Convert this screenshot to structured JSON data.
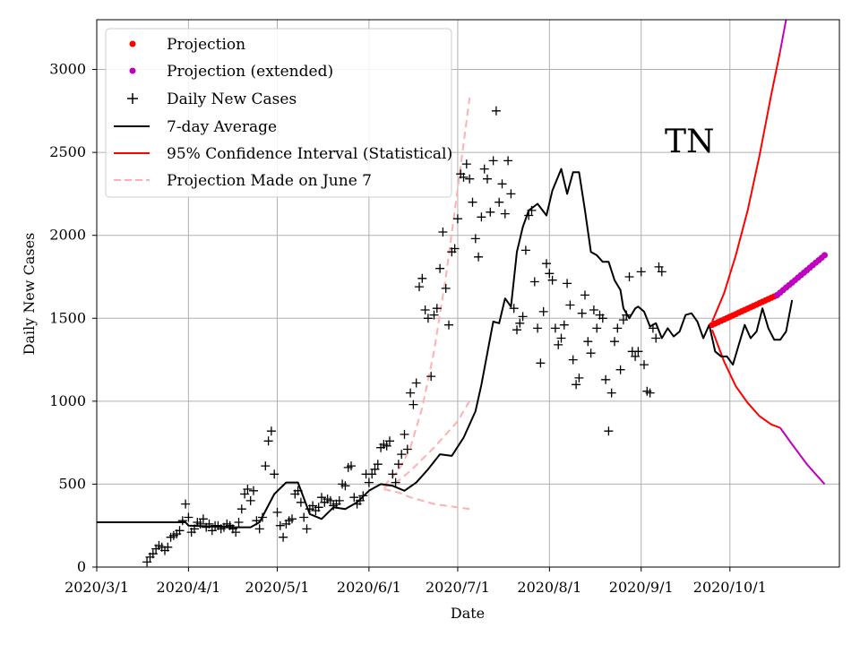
{
  "chart_data": {
    "type": "line",
    "title": "",
    "xlabel": "Date",
    "ylabel": "Daily New Cases",
    "annotation": "TN",
    "x_ticks": [
      "2020/3/1",
      "2020/4/1",
      "2020/5/1",
      "2020/6/1",
      "2020/7/1",
      "2020/8/1",
      "2020/9/1",
      "2020/10/1"
    ],
    "y_ticks": [
      "0",
      "500",
      "1000",
      "1500",
      "2000",
      "2500",
      "3000"
    ],
    "xlim_days": [
      0,
      251
    ],
    "ylim": [
      0,
      3300
    ],
    "grid": true,
    "legend_position": "top-left",
    "legend": [
      {
        "label": "Projection",
        "style": "red-dot"
      },
      {
        "label": "Projection (extended)",
        "style": "magenta-dot"
      },
      {
        "label": "Daily New Cases",
        "style": "black-plus"
      },
      {
        "label": "7-day Average",
        "style": "black-line"
      },
      {
        "label": "95% Confidence Interval (Statistical)",
        "style": "red-line"
      },
      {
        "label": "Projection Made on June 7",
        "style": "pink-dashed"
      }
    ],
    "colors": {
      "projection": "#ff0000",
      "projection_extended": "#bf00bf",
      "daily": "#000000",
      "average": "#000000",
      "ci": "#ff0000",
      "ci_extended": "#bf00bf",
      "june7": "#ffb0b0"
    },
    "series": {
      "daily_new_cases": {
        "day_offset_from_march1": 17,
        "values": [
          30,
          60,
          80,
          110,
          130,
          120,
          100,
          120,
          180,
          190,
          200,
          220,
          280,
          380,
          300,
          210,
          230,
          270,
          260,
          290,
          240,
          260,
          220,
          250,
          250,
          230,
          240,
          260,
          250,
          230,
          210,
          270,
          350,
          440,
          470,
          400,
          460,
          280,
          230,
          300,
          610,
          760,
          820,
          560,
          330,
          250,
          180,
          260,
          280,
          290,
          440,
          460,
          390,
          300,
          230,
          350,
          370,
          340,
          360,
          420,
          390,
          410,
          400,
          370,
          380,
          400,
          500,
          490,
          600,
          610,
          420,
          380,
          400,
          430,
          560,
          510,
          560,
          590,
          620,
          720,
          740,
          730,
          760,
          560,
          510,
          620,
          680,
          800,
          710,
          1050,
          980,
          1110,
          1690,
          1740,
          1550,
          1500,
          1150,
          1520,
          1560,
          1800,
          2020,
          1680,
          1460,
          1900,
          1920,
          2100,
          2370,
          2350,
          2430,
          2340,
          2200,
          1980,
          1870,
          2110,
          2400,
          2340,
          2140,
          2450,
          2750,
          2200,
          2310,
          2130,
          2450,
          2250,
          1560,
          1430,
          1470,
          1510,
          1910,
          2120,
          2150,
          1720,
          1440,
          1230,
          1540,
          1830,
          1770,
          1730,
          1440,
          1340,
          1380,
          1460,
          1710,
          1580,
          1250,
          1100,
          1140,
          1530,
          1640,
          1360,
          1290,
          1550,
          1440,
          1520,
          1500,
          1130,
          820,
          1050,
          1360,
          1440,
          1190,
          1490,
          1520,
          1750,
          1300,
          1270,
          1300,
          1780,
          1220,
          1060,
          1050,
          1440,
          1380,
          1810,
          1780
        ]
      },
      "seven_day_average": {
        "points": [
          [
            0,
            270
          ],
          [
            30,
            270
          ],
          [
            31,
            250
          ],
          [
            46,
            240
          ],
          [
            52,
            240
          ],
          [
            55,
            270
          ],
          [
            60,
            440
          ],
          [
            64,
            510
          ],
          [
            68,
            510
          ],
          [
            72,
            320
          ],
          [
            76,
            290
          ],
          [
            80,
            360
          ],
          [
            84,
            350
          ],
          [
            88,
            390
          ],
          [
            92,
            460
          ],
          [
            96,
            500
          ],
          [
            100,
            490
          ],
          [
            104,
            460
          ],
          [
            108,
            510
          ],
          [
            112,
            590
          ],
          [
            116,
            680
          ],
          [
            120,
            670
          ],
          [
            124,
            780
          ],
          [
            128,
            940
          ],
          [
            130,
            1100
          ],
          [
            134,
            1480
          ],
          [
            136,
            1470
          ],
          [
            138,
            1620
          ],
          [
            140,
            1570
          ],
          [
            142,
            1900
          ],
          [
            144,
            2050
          ],
          [
            146,
            2150
          ],
          [
            149,
            2190
          ],
          [
            152,
            2120
          ],
          [
            154,
            2270
          ],
          [
            157,
            2400
          ],
          [
            159,
            2250
          ],
          [
            161,
            2380
          ],
          [
            163,
            2380
          ],
          [
            165,
            2150
          ],
          [
            167,
            1900
          ],
          [
            169,
            1880
          ],
          [
            171,
            1840
          ],
          [
            173,
            1840
          ],
          [
            175,
            1730
          ],
          [
            177,
            1670
          ],
          [
            178,
            1560
          ],
          [
            180,
            1500
          ],
          [
            182,
            1560
          ],
          [
            183,
            1570
          ],
          [
            185,
            1540
          ],
          [
            187,
            1450
          ],
          [
            189,
            1470
          ],
          [
            191,
            1380
          ],
          [
            193,
            1440
          ],
          [
            195,
            1390
          ],
          [
            197,
            1420
          ],
          [
            199,
            1520
          ],
          [
            201,
            1530
          ],
          [
            203,
            1480
          ],
          [
            205,
            1380
          ],
          [
            207,
            1460
          ],
          [
            209,
            1300
          ],
          [
            211,
            1270
          ],
          [
            213,
            1270
          ],
          [
            215,
            1220
          ],
          [
            217,
            1340
          ],
          [
            219,
            1460
          ],
          [
            221,
            1380
          ],
          [
            223,
            1420
          ],
          [
            225,
            1560
          ],
          [
            227,
            1440
          ],
          [
            229,
            1370
          ],
          [
            231,
            1370
          ],
          [
            233,
            1420
          ],
          [
            235,
            1610
          ]
        ]
      },
      "projection": {
        "start_day": 208,
        "end_day": 230,
        "start_value": 1460,
        "end_value": 1640
      },
      "projection_extended": {
        "start_day": 230,
        "end_day": 246,
        "start_value": 1640,
        "end_value": 1880
      },
      "confidence_interval_upper": {
        "points": [
          [
            208,
            1480
          ],
          [
            212,
            1650
          ],
          [
            216,
            1880
          ],
          [
            220,
            2150
          ],
          [
            224,
            2480
          ],
          [
            228,
            2850
          ],
          [
            231,
            3110
          ]
        ],
        "extended_points": [
          [
            231,
            3110
          ],
          [
            233,
            3300
          ]
        ]
      },
      "confidence_interval_lower": {
        "points": [
          [
            208,
            1430
          ],
          [
            212,
            1240
          ],
          [
            216,
            1090
          ],
          [
            220,
            990
          ],
          [
            224,
            910
          ],
          [
            228,
            860
          ],
          [
            231,
            840
          ]
        ],
        "extended_points": [
          [
            231,
            840
          ],
          [
            235,
            740
          ],
          [
            240,
            620
          ],
          [
            246,
            500
          ]
        ]
      },
      "projection_june7_upper": {
        "points": [
          [
            97,
            490
          ],
          [
            102,
            580
          ],
          [
            106,
            720
          ],
          [
            110,
            960
          ],
          [
            114,
            1300
          ],
          [
            118,
            1750
          ],
          [
            122,
            2280
          ],
          [
            126,
            2830
          ]
        ]
      },
      "projection_june7_middle": {
        "points": [
          [
            97,
            480
          ],
          [
            102,
            520
          ],
          [
            106,
            580
          ],
          [
            110,
            650
          ],
          [
            114,
            720
          ],
          [
            118,
            800
          ],
          [
            122,
            880
          ],
          [
            126,
            1000
          ]
        ]
      },
      "projection_june7_lower": {
        "points": [
          [
            97,
            470
          ],
          [
            102,
            450
          ],
          [
            106,
            420
          ],
          [
            110,
            400
          ],
          [
            114,
            380
          ],
          [
            118,
            370
          ],
          [
            122,
            360
          ],
          [
            126,
            350
          ]
        ]
      }
    }
  }
}
